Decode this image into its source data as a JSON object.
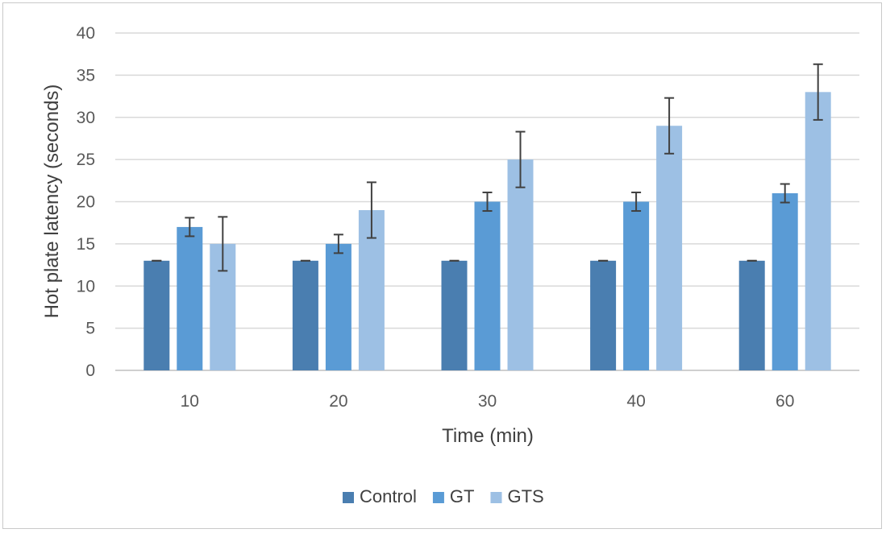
{
  "chart_data": {
    "type": "bar",
    "title": "",
    "xlabel": "Time (min)",
    "ylabel": "Hot plate latency (seconds)",
    "categories": [
      "10",
      "20",
      "30",
      "40",
      "60"
    ],
    "ylim": [
      0,
      40
    ],
    "yticks": [
      0,
      5,
      10,
      15,
      20,
      25,
      30,
      35,
      40
    ],
    "grid": true,
    "legend_position": "bottom",
    "series": [
      {
        "name": "Control",
        "color": "#4a7eb0",
        "values": [
          13,
          13,
          13,
          13,
          13
        ],
        "errors": [
          0,
          0,
          0,
          0,
          0
        ]
      },
      {
        "name": "GT",
        "color": "#5a9bd5",
        "values": [
          17,
          15,
          20,
          20,
          21
        ],
        "errors": [
          1.1,
          1.1,
          1.1,
          1.1,
          1.1
        ]
      },
      {
        "name": "GTS",
        "color": "#9dc0e4",
        "values": [
          15,
          19,
          25,
          29,
          33
        ],
        "errors": [
          3.2,
          3.3,
          3.3,
          3.3,
          3.3
        ]
      }
    ]
  }
}
